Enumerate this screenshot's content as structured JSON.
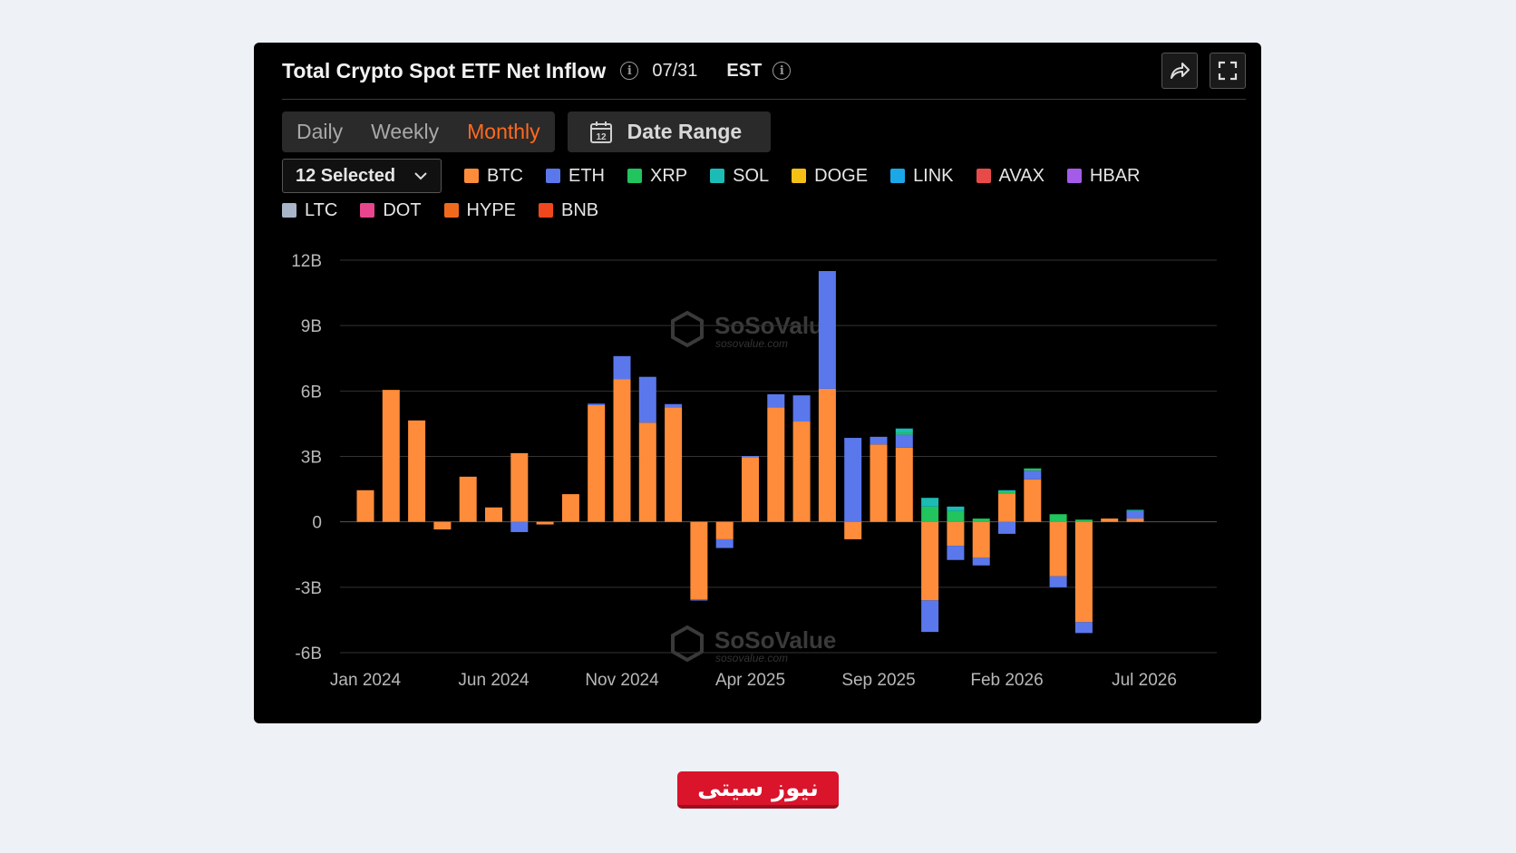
{
  "header": {
    "title": "Total Crypto Spot ETF Net Inflow",
    "date": "07/31",
    "timezone": "EST"
  },
  "icons": {
    "info": "info-icon",
    "share": "share-icon",
    "fullscreen": "fullscreen-icon",
    "calendar": "calendar-icon",
    "chevron": "chevron-down-icon"
  },
  "toolbar": {
    "periods": [
      "Daily",
      "Weekly",
      "Monthly"
    ],
    "active_period": "Monthly",
    "date_range_label": "Date Range",
    "calendar_day": "12"
  },
  "selector": {
    "label": "12 Selected"
  },
  "watermark": {
    "brand": "SoSoValue",
    "url": "sosovalue.com"
  },
  "footer_logo": {
    "text": "نیوز سیتی"
  },
  "chart_data": {
    "type": "bar",
    "stacked": true,
    "title": "Total Crypto Spot ETF Net Inflow",
    "ylim": [
      -6,
      12
    ],
    "yunit": "B",
    "yticks": [
      "12B",
      "9B",
      "6B",
      "3B",
      "0",
      "-3B",
      "-6B"
    ],
    "ytick_values": [
      12,
      9,
      6,
      3,
      0,
      -3,
      -6
    ],
    "xtick_labels": [
      "Jan 2024",
      "Jun 2024",
      "Nov 2024",
      "Apr 2025",
      "Sep 2025",
      "Feb 2026",
      "Jul 2026"
    ],
    "xtick_categories": [
      "Jan 2024",
      "Jun 2024",
      "Nov 2024",
      "Apr 2025",
      "Sep 2025",
      "Feb 2026",
      "Jul 2026"
    ],
    "grid": true,
    "legend_position": "top",
    "categories": [
      "Jan 2024",
      "Feb 2024",
      "Mar 2024",
      "Apr 2024",
      "May 2024",
      "Jun 2024",
      "Jul 2024",
      "Aug 2024",
      "Sep 2024",
      "Oct 2024",
      "Nov 2024",
      "Dec 2024",
      "Jan 2025",
      "Feb 2025",
      "Mar 2025",
      "Apr 2025",
      "May 2025",
      "Jun 2025",
      "Jul 2025",
      "Aug 2025",
      "Sep 2025",
      "Oct 2025",
      "Nov 2025",
      "Dec 2025",
      "Jan 2026",
      "Feb 2026",
      "Mar 2026",
      "Apr 2026",
      "May 2026",
      "Jun 2026",
      "Jul 2026"
    ],
    "series": [
      {
        "name": "BTC",
        "color": "#ff8c3a",
        "values": [
          1.45,
          6.05,
          4.65,
          -0.35,
          2.07,
          0.66,
          3.15,
          -0.12,
          1.27,
          5.35,
          6.55,
          4.55,
          5.25,
          -3.56,
          -0.8,
          2.97,
          5.25,
          4.6,
          6.1,
          -0.8,
          3.55,
          3.4,
          -3.6,
          -1.1,
          -1.65,
          1.3,
          1.95,
          -2.5,
          -4.6,
          0.15,
          0.15
        ]
      },
      {
        "name": "ETH",
        "color": "#5a78ec",
        "values": [
          0,
          0,
          0,
          0,
          0,
          0,
          -0.47,
          0,
          0,
          0.07,
          1.05,
          2.1,
          0.15,
          -0.05,
          -0.4,
          0.05,
          0.6,
          1.2,
          5.4,
          3.85,
          0.35,
          0.6,
          -1.45,
          -0.65,
          -0.35,
          -0.55,
          0.4,
          -0.5,
          -0.5,
          0,
          0.35
        ]
      },
      {
        "name": "XRP",
        "color": "#21c45d",
        "values": [
          0,
          0,
          0,
          0,
          0,
          0,
          0,
          0,
          0,
          0,
          0,
          0,
          0,
          0,
          0,
          0,
          0,
          0,
          0,
          0,
          0,
          0.1,
          0.7,
          0.5,
          0.15,
          0.1,
          0.1,
          0.35,
          0.1,
          0,
          0
        ]
      },
      {
        "name": "SOL",
        "color": "#1bbcb5",
        "values": [
          0,
          0,
          0,
          0,
          0,
          0,
          0,
          0,
          0,
          0,
          0,
          0,
          0,
          0,
          0,
          0,
          0,
          0,
          0,
          0,
          0,
          0.18,
          0.4,
          0.2,
          0,
          0.05,
          0,
          0,
          0,
          0,
          0.05
        ]
      },
      {
        "name": "DOGE",
        "color": "#f5c016",
        "values": [
          0,
          0,
          0,
          0,
          0,
          0,
          0,
          0,
          0,
          0,
          0,
          0,
          0,
          0,
          0,
          0,
          0,
          0,
          0,
          0,
          0,
          0,
          0,
          0,
          0,
          0,
          0,
          0,
          0,
          0,
          0
        ]
      },
      {
        "name": "LINK",
        "color": "#1aa8e8",
        "values": [
          0,
          0,
          0,
          0,
          0,
          0,
          0,
          0,
          0,
          0,
          0,
          0,
          0,
          0,
          0,
          0,
          0,
          0,
          0,
          0,
          0,
          0,
          0,
          0,
          0,
          0,
          0,
          0,
          0,
          0,
          0
        ]
      },
      {
        "name": "AVAX",
        "color": "#e84a4a",
        "values": [
          0,
          0,
          0,
          0,
          0,
          0,
          0,
          0,
          0,
          0,
          0,
          0,
          0,
          0,
          0,
          0,
          0,
          0,
          0,
          0,
          0,
          0,
          0,
          0,
          0,
          0,
          0,
          0,
          0,
          0,
          0
        ]
      },
      {
        "name": "HBAR",
        "color": "#a45ce8",
        "values": [
          0,
          0,
          0,
          0,
          0,
          0,
          0,
          0,
          0,
          0,
          0,
          0,
          0,
          0,
          0,
          0,
          0,
          0,
          0,
          0,
          0,
          0,
          0,
          0,
          0,
          0,
          0,
          0,
          0,
          0,
          0
        ]
      },
      {
        "name": "LTC",
        "color": "#a8b4c8",
        "values": [
          0,
          0,
          0,
          0,
          0,
          0,
          0,
          0,
          0,
          0,
          0,
          0,
          0,
          0,
          0,
          0,
          0,
          0,
          0,
          0,
          0,
          0,
          0,
          0,
          0,
          0,
          0,
          0,
          0,
          0,
          0
        ]
      },
      {
        "name": "DOT",
        "color": "#e8458f",
        "values": [
          0,
          0,
          0,
          0,
          0,
          0,
          0,
          0,
          0,
          0,
          0,
          0,
          0,
          0,
          0,
          0,
          0,
          0,
          0,
          0,
          0,
          0,
          0,
          0,
          0,
          0,
          0,
          0,
          0,
          0,
          0
        ]
      },
      {
        "name": "HYPE",
        "color": "#f06a1e",
        "values": [
          0,
          0,
          0,
          0,
          0,
          0,
          0,
          0,
          0,
          0,
          0,
          0,
          0,
          0,
          0,
          0,
          0,
          0,
          0,
          0,
          0,
          0,
          0,
          0,
          0,
          0,
          0,
          0,
          0,
          0,
          0
        ]
      },
      {
        "name": "BNB",
        "color": "#f0471e",
        "values": [
          0,
          0,
          0,
          0,
          0,
          0,
          0,
          0,
          0,
          0,
          0,
          0,
          0,
          0,
          0,
          0,
          0,
          0,
          0,
          0,
          0,
          0,
          0,
          0,
          0,
          0,
          0,
          0,
          0,
          0,
          0
        ]
      }
    ]
  }
}
